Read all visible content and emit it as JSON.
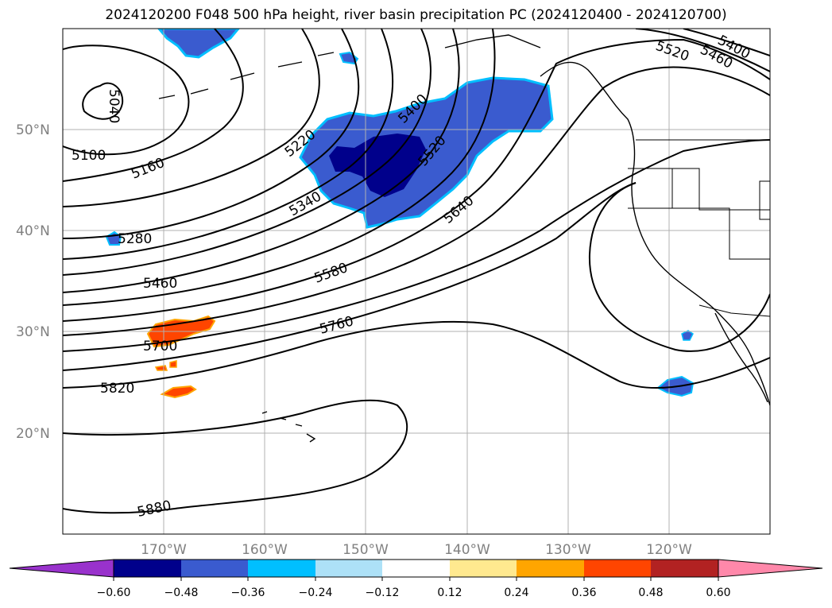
{
  "title": "2024120200 F048 500 hPa height, river basin precipitation PC (2024120400 - 2024120700)",
  "map": {
    "lat_labels": [
      "50°N",
      "40°N",
      "30°N",
      "20°N"
    ],
    "lon_labels": [
      "170°W",
      "160°W",
      "150°W",
      "140°W",
      "130°W",
      "120°W"
    ],
    "contour_labels": [
      "5040",
      "5100",
      "5160",
      "5220",
      "5280",
      "5340",
      "5400",
      "5400",
      "5460",
      "5460",
      "5520",
      "5520",
      "5580",
      "5640",
      "5700",
      "5760",
      "5820",
      "5880"
    ]
  },
  "colorbar": {
    "ticks": [
      "−0.60",
      "−0.48",
      "−0.36",
      "−0.24",
      "−0.12",
      "0.12",
      "0.24",
      "0.36",
      "0.48",
      "0.60"
    ],
    "colors": [
      "#9932cc",
      "#00008b",
      "#3a5bcf",
      "#00bfff",
      "#ade1f7",
      "#ffffff",
      "#ffe98f",
      "#ffa500",
      "#ff4500",
      "#b22222",
      "#ff88aa"
    ]
  },
  "colors": {
    "strong_negative": "#00008b",
    "negative": "#3a5bcf",
    "light_negative": "#00bfff",
    "positive": "#ff4500",
    "moderate_positive": "#ffa500",
    "grid": "#b0b0b0",
    "tick_text": "#808080"
  }
}
